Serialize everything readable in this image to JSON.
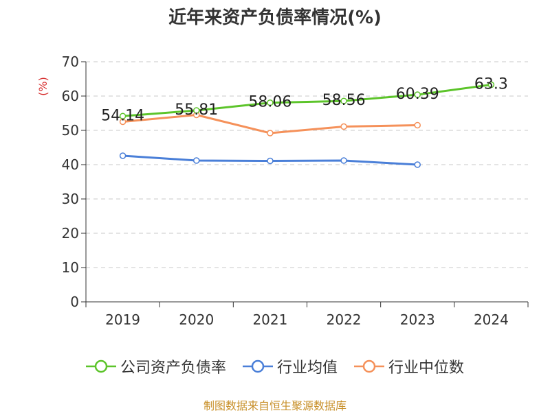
{
  "colors": {
    "company": "#5cc42a",
    "industry_avg": "#4a7fd8",
    "industry_median": "#f5915a",
    "ylabel": "#d62c2c",
    "source": "#c8902a"
  },
  "source": "制图数据来自恒生聚源数据库",
  "chart_data": {
    "type": "line",
    "title": "近年来资产负债率情况(%)",
    "ylabel": "(%)",
    "xlabel": "",
    "ylim": [
      0,
      70
    ],
    "yticks": [
      0,
      10,
      20,
      30,
      40,
      50,
      60,
      70
    ],
    "grid": true,
    "legend_position": "bottom",
    "categories": [
      "2019",
      "2020",
      "2021",
      "2022",
      "2023",
      "2024"
    ],
    "series": [
      {
        "name": "公司资产负债率",
        "color_key": "company",
        "values": [
          54.14,
          55.81,
          58.06,
          58.56,
          60.39,
          63.3
        ],
        "labels": [
          "54.14",
          "55.81",
          "58.06",
          "58.56",
          "60.39",
          "63.3"
        ]
      },
      {
        "name": "行业均值",
        "color_key": "industry_avg",
        "values": [
          42.6,
          41.2,
          41.1,
          41.2,
          40.0,
          null
        ]
      },
      {
        "name": "行业中位数",
        "color_key": "industry_median",
        "values": [
          52.5,
          54.5,
          49.2,
          51.1,
          51.5,
          null
        ]
      }
    ]
  }
}
